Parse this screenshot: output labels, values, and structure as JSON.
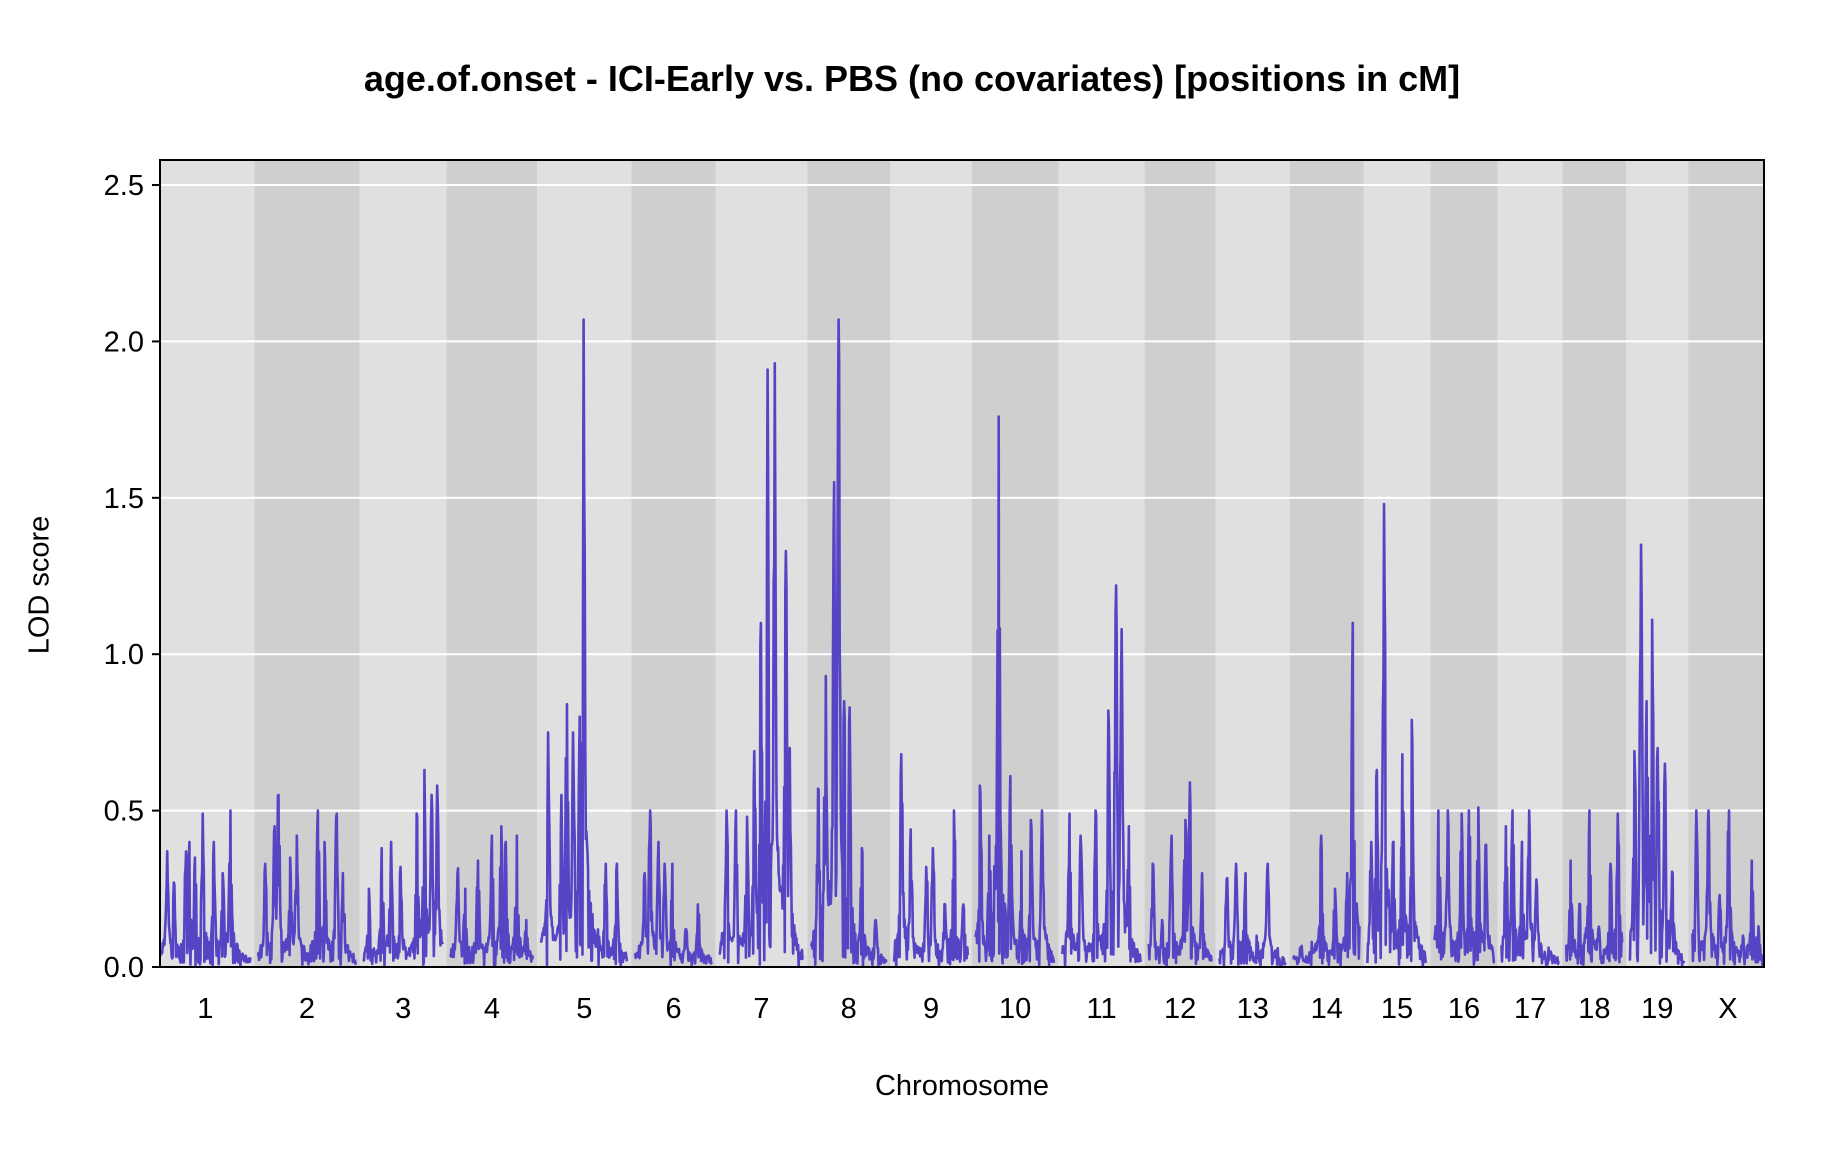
{
  "chart_data": {
    "type": "line",
    "title": "age.of.onset - ICI-Early vs. PBS (no covariates) [positions in cM]",
    "xlabel": "Chromosome",
    "ylabel": "LOD score",
    "ylim": [
      0,
      2.58
    ],
    "yticks": [
      0.0,
      0.5,
      1.0,
      1.5,
      2.0,
      2.5
    ],
    "ytick_labels": [
      "0.0",
      "0.5",
      "1.0",
      "1.5",
      "2.0",
      "2.5"
    ],
    "grid": true,
    "legend": "none",
    "colors": {
      "line": "#5544c4",
      "band_light": "#e0e0e0",
      "band_dark": "#cfcfcf",
      "grid": "#ffffff"
    },
    "chromosomes": [
      {
        "name": "1",
        "length": 98,
        "peaks": [
          [
            8,
            0.37
          ],
          [
            15,
            0.27
          ],
          [
            28,
            0.37
          ],
          [
            32,
            0.4
          ],
          [
            38,
            0.35
          ],
          [
            46,
            0.49
          ],
          [
            58,
            0.4
          ],
          [
            68,
            0.3
          ],
          [
            76,
            0.5
          ]
        ]
      },
      {
        "name": "2",
        "length": 106,
        "peaks": [
          [
            8,
            0.33
          ],
          [
            18,
            0.45
          ],
          [
            22,
            0.55
          ],
          [
            35,
            0.35
          ],
          [
            42,
            0.42
          ],
          [
            65,
            0.5
          ],
          [
            72,
            0.4
          ],
          [
            85,
            0.49
          ],
          [
            92,
            0.3
          ]
        ]
      },
      {
        "name": "3",
        "length": 86,
        "peaks": [
          [
            6,
            0.25
          ],
          [
            20,
            0.38
          ],
          [
            30,
            0.4
          ],
          [
            40,
            0.32
          ],
          [
            58,
            0.48
          ],
          [
            66,
            0.63
          ],
          [
            74,
            0.55
          ],
          [
            80,
            0.58
          ]
        ]
      },
      {
        "name": "4",
        "length": 90,
        "peaks": [
          [
            8,
            0.3
          ],
          [
            16,
            0.25
          ],
          [
            30,
            0.34
          ],
          [
            45,
            0.42
          ],
          [
            55,
            0.45
          ],
          [
            60,
            0.4
          ],
          [
            72,
            0.42
          ],
          [
            82,
            0.15
          ]
        ]
      },
      {
        "name": "5",
        "length": 94,
        "peaks": [
          [
            8,
            0.75
          ],
          [
            22,
            0.55
          ],
          [
            28,
            0.84
          ],
          [
            35,
            0.75
          ],
          [
            42,
            0.8
          ],
          [
            46,
            2.07
          ],
          [
            50,
            0.4
          ],
          [
            62,
            0.12
          ],
          [
            70,
            0.33
          ],
          [
            82,
            0.33
          ]
        ]
      },
      {
        "name": "6",
        "length": 83,
        "peaks": [
          [
            10,
            0.3
          ],
          [
            16,
            0.5
          ],
          [
            25,
            0.4
          ],
          [
            32,
            0.33
          ],
          [
            40,
            0.33
          ],
          [
            55,
            0.12
          ],
          [
            68,
            0.2
          ]
        ]
      },
      {
        "name": "7",
        "length": 91,
        "peaks": [
          [
            8,
            0.5
          ],
          [
            18,
            0.5
          ],
          [
            30,
            0.48
          ],
          [
            38,
            0.69
          ],
          [
            45,
            1.1
          ],
          [
            52,
            1.91
          ],
          [
            60,
            1.93
          ],
          [
            64,
            0.3
          ],
          [
            72,
            1.33
          ],
          [
            76,
            0.7
          ]
        ]
      },
      {
        "name": "8",
        "length": 82,
        "peaks": [
          [
            8,
            0.57
          ],
          [
            16,
            0.93
          ],
          [
            25,
            1.55
          ],
          [
            30,
            2.07
          ],
          [
            36,
            0.85
          ],
          [
            42,
            0.83
          ],
          [
            55,
            0.38
          ],
          [
            70,
            0.15
          ]
        ]
      },
      {
        "name": "9",
        "length": 80,
        "peaks": [
          [
            8,
            0.68
          ],
          [
            18,
            0.44
          ],
          [
            35,
            0.32
          ],
          [
            42,
            0.38
          ],
          [
            55,
            0.2
          ],
          [
            65,
            0.5
          ],
          [
            75,
            0.2
          ]
        ]
      },
      {
        "name": "10",
        "length": 86,
        "peaks": [
          [
            5,
            0.58
          ],
          [
            15,
            0.42
          ],
          [
            25,
            1.76
          ],
          [
            38,
            0.61
          ],
          [
            50,
            0.37
          ],
          [
            60,
            0.47
          ],
          [
            72,
            0.5
          ]
        ]
      },
      {
        "name": "11",
        "length": 85,
        "peaks": [
          [
            8,
            0.49
          ],
          [
            20,
            0.42
          ],
          [
            36,
            0.5
          ],
          [
            50,
            0.82
          ],
          [
            58,
            1.22
          ],
          [
            64,
            1.08
          ],
          [
            72,
            0.45
          ]
        ]
      },
      {
        "name": "12",
        "length": 69,
        "peaks": [
          [
            5,
            0.33
          ],
          [
            15,
            0.15
          ],
          [
            25,
            0.42
          ],
          [
            40,
            0.47
          ],
          [
            45,
            0.59
          ],
          [
            58,
            0.3
          ]
        ]
      },
      {
        "name": "13",
        "length": 72,
        "peaks": [
          [
            8,
            0.28
          ],
          [
            18,
            0.33
          ],
          [
            28,
            0.3
          ],
          [
            40,
            0.1
          ],
          [
            52,
            0.33
          ],
          [
            62,
            0.05
          ]
        ]
      },
      {
        "name": "14",
        "length": 72,
        "peaks": [
          [
            8,
            0.06
          ],
          [
            20,
            0.08
          ],
          [
            30,
            0.42
          ],
          [
            45,
            0.25
          ],
          [
            58,
            0.3
          ],
          [
            64,
            1.1
          ]
        ]
      },
      {
        "name": "15",
        "length": 64,
        "peaks": [
          [
            4,
            0.4
          ],
          [
            10,
            0.63
          ],
          [
            18,
            1.48
          ],
          [
            28,
            0.4
          ],
          [
            38,
            0.68
          ],
          [
            48,
            0.79
          ]
        ]
      },
      {
        "name": "16",
        "length": 65,
        "peaks": [
          [
            5,
            0.5
          ],
          [
            15,
            0.5
          ],
          [
            30,
            0.49
          ],
          [
            38,
            0.5
          ],
          [
            48,
            0.51
          ],
          [
            56,
            0.39
          ]
        ]
      },
      {
        "name": "17",
        "length": 62,
        "peaks": [
          [
            5,
            0.45
          ],
          [
            12,
            0.5
          ],
          [
            22,
            0.4
          ],
          [
            30,
            0.5
          ],
          [
            38,
            0.28
          ],
          [
            52,
            0.05
          ]
        ]
      },
      {
        "name": "18",
        "length": 61,
        "peaks": [
          [
            5,
            0.34
          ],
          [
            15,
            0.2
          ],
          [
            25,
            0.5
          ],
          [
            35,
            0.12
          ],
          [
            48,
            0.33
          ],
          [
            56,
            0.49
          ]
        ]
      },
      {
        "name": "19",
        "length": 59,
        "peaks": [
          [
            5,
            0.69
          ],
          [
            12,
            1.35
          ],
          [
            18,
            0.85
          ],
          [
            24,
            1.11
          ],
          [
            30,
            0.7
          ],
          [
            38,
            0.65
          ],
          [
            46,
            0.3
          ]
        ]
      },
      {
        "name": "X",
        "length": 78,
        "peaks": [
          [
            5,
            0.5
          ],
          [
            18,
            0.5
          ],
          [
            30,
            0.23
          ],
          [
            40,
            0.5
          ],
          [
            55,
            0.1
          ],
          [
            65,
            0.34
          ],
          [
            72,
            0.13
          ]
        ]
      }
    ]
  }
}
